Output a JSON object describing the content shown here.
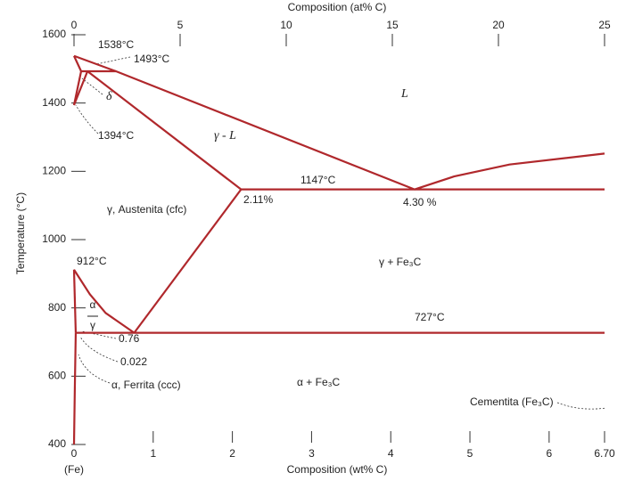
{
  "chart_data": {
    "type": "phase",
    "title": "Composition (at% C)",
    "x_label": "Composition (wt% C)",
    "y_label": "Temperature (°C)",
    "color": "#b0282c",
    "xlim": [
      0,
      6.7
    ],
    "xticks": [
      0,
      1,
      2,
      3,
      4,
      5,
      6,
      {
        "value": 6.7,
        "label": "6.70"
      }
    ],
    "x2lim": [
      0,
      25
    ],
    "x2ticks": [
      0,
      5,
      10,
      15,
      20,
      25
    ],
    "ylim": [
      400,
      1600
    ],
    "yticks": [
      400,
      600,
      800,
      1000,
      1200,
      1400,
      1600
    ],
    "boundaries": [
      {
        "x": [
          0,
          0.53,
          4.3
        ],
        "y": [
          1538,
          1493,
          1147
        ]
      },
      {
        "x": [
          4.3,
          4.8,
          5.5,
          6.7
        ],
        "y": [
          1147,
          1185,
          1220,
          1252
        ]
      },
      {
        "x": [
          0.09,
          0.53
        ],
        "y": [
          1493,
          1493
        ]
      },
      {
        "x": [
          0,
          0.09
        ],
        "y": [
          1538,
          1493
        ]
      },
      {
        "x": [
          0,
          0.09
        ],
        "y": [
          1394,
          1493
        ]
      },
      {
        "x": [
          0,
          0.17
        ],
        "y": [
          1394,
          1493
        ]
      },
      {
        "x": [
          0.17,
          2.11
        ],
        "y": [
          1493,
          1147
        ]
      },
      {
        "x": [
          2.11,
          6.7
        ],
        "y": [
          1147,
          1147
        ]
      },
      {
        "x": [
          2.11,
          0.76
        ],
        "y": [
          1147,
          727
        ]
      },
      {
        "x": [
          0,
          0.2,
          0.4,
          0.76
        ],
        "y": [
          912,
          840,
          785,
          727
        ]
      },
      {
        "x": [
          0,
          0.022
        ],
        "y": [
          912,
          727
        ]
      },
      {
        "x": [
          0.022,
          6.7
        ],
        "y": [
          727,
          727
        ]
      },
      {
        "x": [
          0.022,
          0.01,
          0
        ],
        "y": [
          727,
          560,
          400
        ]
      }
    ],
    "annotations": [
      "1538°C",
      "1493°C",
      "1394°C",
      "L",
      "δ",
      "γ - L",
      "1147°C",
      "2.11%",
      "4.30 %",
      "γ, Austenita (cfc)",
      "912°C",
      "γ + Fe₃C",
      "727°C",
      "0.76",
      "0.022",
      "α, Ferrita (ccc)",
      "α + Fe₃C",
      "Cementita (Fe₃C)",
      "(Fe)",
      "α",
      "γ"
    ]
  }
}
